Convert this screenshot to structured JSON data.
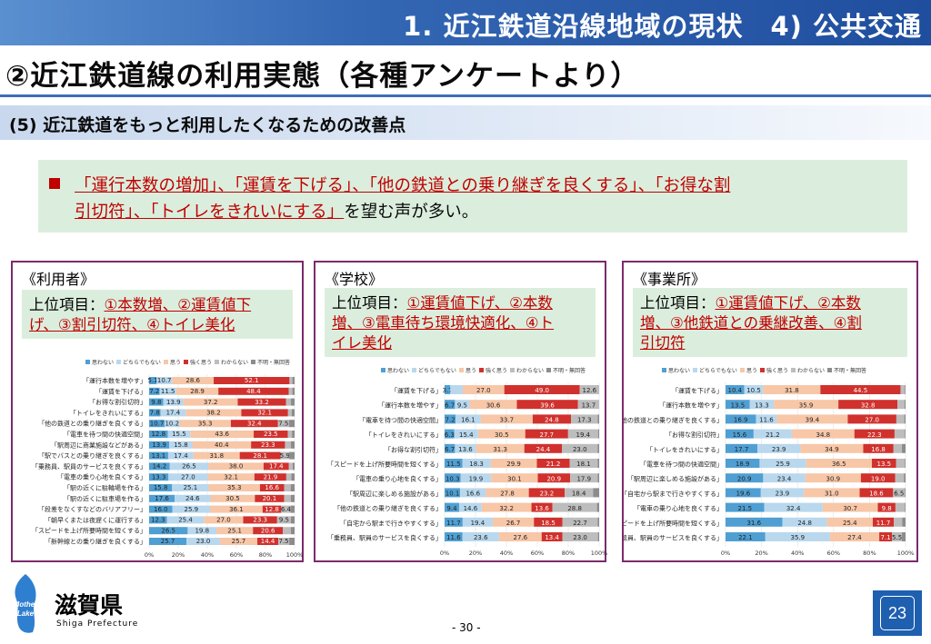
{
  "header": {
    "title": "1. 近江鉄道沿線地域の現状　4) 公共交通"
  },
  "main_title": "②近江鉄道線の利用実態（各種アンケートより）",
  "section_title": "(5) 近江鉄道をもっと利用したくなるための改善点",
  "summary": {
    "line1_hl": "「運行本数の増加」、「運賃を下げる」、「他の鉄道との乗り継ぎを良くする」、「お得な割",
    "line2_hl": "引切符」、「トイレをきれいにする」",
    "line2_rest": "を望む声が多い。"
  },
  "panels": [
    {
      "title": "《利用者》",
      "top_label": "上位項目：",
      "top_line1": "①本数増、②運賃値下",
      "top_line2": "げ、③割引切符、④トイレ美化"
    },
    {
      "title": "《学校》",
      "top_label": "上位項目：",
      "top_line1": "①運賃値下げ、②本数",
      "top_line2": "増、③電車待ち環境快適化、④ト",
      "top_line3": "イレ美化"
    },
    {
      "title": "《事業所》",
      "top_label": "上位項目：",
      "top_line1": "①運賃値下げ、②本数",
      "top_line2": "増、③他鉄道との乗継改善、④割",
      "top_line3": "引切符"
    }
  ],
  "legend_colors": [
    "#4f9fd3",
    "#b9d8ee",
    "#f7c7a8",
    "#d0312d",
    "#bdbdbd",
    "#8c8c8c"
  ],
  "chart_data": [
    {
      "type": "bar",
      "orientation": "horizontal",
      "stacked": true,
      "legend": [
        "思わない",
        "どちらでもない",
        "思う",
        "強く思う",
        "わからない",
        "不明・無回答"
      ],
      "xlim": [
        0,
        100
      ],
      "xticks": [
        "0%",
        "20%",
        "40%",
        "60%",
        "80%",
        "100%"
      ],
      "categories": [
        "「運行本数を増やす」",
        "「運賃を下げる」",
        "「お得な割引切符」",
        "「トイレをきれいにする」",
        "「他の鉄道との乗り継ぎを良くする」",
        "「電車を待つ間の快適空間」",
        "「駅周辺に商業施設などがある」",
        "「駅でバスとの乗り継ぎを良くする」",
        "「乗務員、駅員のサービスを良くする」",
        "「電車の乗り心地を良くする」",
        "「駅の近くに駐輪場を作る」",
        "「駅の近くに駐車場を作る」",
        "「段差をなくすなどのバリアフリー」",
        "「朝早くまたは夜遅くに運行する」",
        "「スピードを上げ所要時間を短くする」",
        "「新幹線との乗り継ぎを良くする」"
      ],
      "series": [
        {
          "name": "思わない",
          "values": [
            5.1,
            7.2,
            9.8,
            7.8,
            10.7,
            12.8,
            13.9,
            13.1,
            14.2,
            13.3,
            15.8,
            17.6,
            16.0,
            12.3,
            26.5,
            25.7
          ]
        },
        {
          "name": "どちらでもない",
          "values": [
            10.7,
            11.5,
            13.9,
            17.4,
            10.2,
            15.5,
            15.8,
            17.4,
            26.5,
            27.0,
            25.1,
            24.6,
            25.9,
            25.4,
            19.8,
            23.0
          ]
        },
        {
          "name": "思う",
          "values": [
            28.6,
            28.9,
            37.2,
            38.2,
            35.3,
            43.6,
            40.4,
            31.8,
            38.0,
            32.1,
            35.3,
            30.5,
            36.1,
            27.0,
            25.1,
            25.7
          ]
        },
        {
          "name": "強く思う",
          "values": [
            52.1,
            48.4,
            33.2,
            32.1,
            32.4,
            23.5,
            23.3,
            28.1,
            17.4,
            21.9,
            16.6,
            20.1,
            12.8,
            23.3,
            20.6,
            14.4
          ]
        },
        {
          "name": "わからない",
          "values": [
            2.0,
            2.5,
            3.4,
            2.5,
            7.5,
            2.8,
            4.0,
            5.9,
            2.6,
            3.5,
            4.5,
            4.6,
            6.4,
            9.5,
            5.4,
            7.5
          ]
        },
        {
          "name": "不明・無回答",
          "values": [
            1.5,
            1.5,
            2.5,
            2.0,
            3.9,
            1.8,
            2.6,
            3.7,
            1.3,
            2.2,
            2.7,
            2.6,
            2.8,
            2.5,
            2.6,
            3.7
          ]
        }
      ],
      "labels": [
        [
          "5.1",
          "10.7",
          "28.6",
          "52.1",
          "",
          ""
        ],
        [
          "7.2",
          "11.5",
          "28.9",
          "48.4",
          "",
          ""
        ],
        [
          "9.8",
          "13.9",
          "37.2",
          "33.2",
          "",
          ""
        ],
        [
          "7.8",
          "17.4",
          "38.2",
          "32.1",
          "",
          ""
        ],
        [
          "10.7",
          "10.2",
          "35.3",
          "32.4",
          "7.5",
          ""
        ],
        [
          "12.8",
          "15.5",
          "43.6",
          "23.5",
          "",
          ""
        ],
        [
          "13.9",
          "15.8",
          "40.4",
          "23.3",
          "",
          ""
        ],
        [
          "13.1",
          "17.4",
          "31.8",
          "28.1",
          "5.9",
          ""
        ],
        [
          "14.2",
          "26.5",
          "38.0",
          "17.4",
          "",
          ""
        ],
        [
          "13.3",
          "27.0",
          "32.1",
          "21.9",
          "",
          ""
        ],
        [
          "15.8",
          "25.1",
          "35.3",
          "16.6",
          "",
          ""
        ],
        [
          "17.6",
          "24.6",
          "30.5",
          "20.1",
          "",
          ""
        ],
        [
          "16.0",
          "25.9",
          "36.1",
          "12.8",
          "6.4",
          ""
        ],
        [
          "12.3",
          "25.4",
          "27.0",
          "23.3",
          "9.5",
          ""
        ],
        [
          "26.5",
          "19.8",
          "25.1",
          "20.6",
          "",
          ""
        ],
        [
          "25.7",
          "23.0",
          "25.7",
          "14.4",
          "7.5",
          ""
        ]
      ]
    },
    {
      "type": "bar",
      "orientation": "horizontal",
      "stacked": true,
      "legend": [
        "思わない",
        "どちらでもない",
        "思う",
        "強く思う",
        "わからない",
        "不明・無回答"
      ],
      "xlim": [
        0,
        100
      ],
      "xticks": [
        "0%",
        "20%",
        "40%",
        "60%",
        "80%",
        "100%"
      ],
      "categories": [
        "「運賃を下げる」",
        "「運行本数を増やす」",
        "「電車を待つ間の快適空間」",
        "「トイレをきれいにする」",
        "「お得な割引切符」",
        "「スピードを上げ所要時間を短くする」",
        "「電車の乗り心地を良くする」",
        "「駅周辺に楽しめる施設がある」",
        "「他の鉄道との乗り継ぎを良くする」",
        "「自宅から駅まで行きやすくする」",
        "「乗務員、駅員のサービスを良くする」"
      ],
      "series": [
        {
          "name": "思わない",
          "values": [
            3.7,
            6.7,
            7.2,
            6.3,
            6.7,
            11.5,
            10.3,
            10.1,
            9.4,
            11.7,
            11.6
          ]
        },
        {
          "name": "どちらでもない",
          "values": [
            8.1,
            9.5,
            16.1,
            15.4,
            13.6,
            18.3,
            19.9,
            16.6,
            14.6,
            19.4,
            23.6
          ]
        },
        {
          "name": "思う",
          "values": [
            27.0,
            30.6,
            33.7,
            30.5,
            31.3,
            29.9,
            30.1,
            27.8,
            32.2,
            26.7,
            27.6
          ]
        },
        {
          "name": "強く思う",
          "values": [
            49.0,
            39.6,
            24.8,
            27.7,
            24.4,
            21.2,
            20.9,
            23.2,
            13.6,
            18.5,
            13.4
          ]
        },
        {
          "name": "わからない",
          "values": [
            12.6,
            13.7,
            17.3,
            19.4,
            23.0,
            18.1,
            17.9,
            18.4,
            28.8,
            22.7,
            23.0
          ]
        },
        {
          "name": "不明・無回答",
          "values": [
            0.0,
            0.0,
            0.9,
            0.7,
            1.0,
            1.0,
            0.9,
            3.9,
            1.4,
            1.0,
            0.8
          ]
        }
      ],
      "labels": [
        [
          "3.7",
          "",
          "27.0",
          "49.0",
          "12.6",
          ""
        ],
        [
          "6.7",
          "9.5",
          "30.6",
          "39.6",
          "13.7",
          ""
        ],
        [
          "7.2",
          "16.1",
          "33.7",
          "24.8",
          "17.3",
          ""
        ],
        [
          "6.3",
          "15.4",
          "30.5",
          "27.7",
          "19.4",
          ""
        ],
        [
          "6.7",
          "13.6",
          "31.3",
          "24.4",
          "23.0",
          ""
        ],
        [
          "11.5",
          "18.3",
          "29.9",
          "21.2",
          "18.1",
          ""
        ],
        [
          "10.3",
          "19.9",
          "30.1",
          "20.9",
          "17.9",
          ""
        ],
        [
          "10.1",
          "16.6",
          "27.8",
          "23.2",
          "18.4",
          ""
        ],
        [
          "9.4",
          "14.6",
          "32.2",
          "13.6",
          "28.8",
          ""
        ],
        [
          "11.7",
          "19.4",
          "26.7",
          "18.5",
          "22.7",
          ""
        ],
        [
          "11.6",
          "23.6",
          "27.6",
          "13.4",
          "23.0",
          ""
        ]
      ]
    },
    {
      "type": "bar",
      "orientation": "horizontal",
      "stacked": true,
      "legend": [
        "思わない",
        "どちらでもない",
        "思う",
        "強く思う",
        "わからない",
        "不明・無回答"
      ],
      "xlim": [
        0,
        100
      ],
      "xticks": [
        "0%",
        "20%",
        "40%",
        "60%",
        "80%",
        "100%"
      ],
      "categories": [
        "「運賃を下げる」",
        "「運行本数を増やす」",
        "「他の鉄道との乗り継ぎを良くする」",
        "「お得な割引切符」",
        "「トイレをきれいにする」",
        "「電車を待つ間の快適空間」",
        "「駅周辺に楽しめる施設がある」",
        "「自宅から駅まで行きやすくする」",
        "「電車の乗り心地を良くする」",
        "「スピードを上げ所要時間を短くする」",
        "「乗務員、駅員のサービスを良くする」"
      ],
      "series": [
        {
          "name": "思わない",
          "values": [
            10.4,
            13.5,
            16.9,
            15.6,
            17.7,
            18.9,
            20.9,
            19.6,
            21.5,
            31.6,
            22.1
          ]
        },
        {
          "name": "どちらでもない",
          "values": [
            10.5,
            13.3,
            11.6,
            21.2,
            23.9,
            25.9,
            23.4,
            23.9,
            32.4,
            24.8,
            35.9
          ]
        },
        {
          "name": "思う",
          "values": [
            31.8,
            35.9,
            39.4,
            34.8,
            34.9,
            36.5,
            30.9,
            31.0,
            30.7,
            25.4,
            27.4
          ]
        },
        {
          "name": "強く思う",
          "values": [
            44.5,
            32.8,
            27.0,
            22.3,
            16.8,
            13.5,
            19.0,
            18.6,
            9.8,
            11.7,
            7.1
          ]
        },
        {
          "name": "わからない",
          "values": [
            2.4,
            4.0,
            4.4,
            5.7,
            4.7,
            4.8,
            4.9,
            6.5,
            5.2,
            4.6,
            5.5
          ]
        },
        {
          "name": "不明・無回答",
          "values": [
            0.4,
            0.5,
            0.7,
            0.4,
            2.0,
            0.4,
            0.9,
            0.4,
            0.4,
            1.9,
            2.0
          ]
        }
      ],
      "labels": [
        [
          "10.4",
          "10.5",
          "31.8",
          "44.5",
          "",
          ""
        ],
        [
          "13.5",
          "13.3",
          "35.9",
          "32.8",
          "",
          ""
        ],
        [
          "16.9",
          "11.6",
          "39.4",
          "27.0",
          "",
          ""
        ],
        [
          "15.6",
          "21.2",
          "34.8",
          "22.3",
          "",
          ""
        ],
        [
          "17.7",
          "23.9",
          "34.9",
          "16.8",
          "",
          ""
        ],
        [
          "18.9",
          "25.9",
          "36.5",
          "13.5",
          "",
          ""
        ],
        [
          "20.9",
          "23.4",
          "30.9",
          "19.0",
          "",
          ""
        ],
        [
          "19.6",
          "23.9",
          "31.0",
          "18.6",
          "6.5",
          ""
        ],
        [
          "21.5",
          "32.4",
          "30.7",
          "9.8",
          "",
          ""
        ],
        [
          "31.6",
          "24.8",
          "25.4",
          "11.7",
          "",
          ""
        ],
        [
          "22.1",
          "35.9",
          "27.4",
          "7.1",
          "5.5",
          ""
        ]
      ]
    }
  ],
  "footer": {
    "page_number": "- 30 -",
    "logo_mother": "Mother",
    "logo_lake": "Lake",
    "logo_name": "滋賀県",
    "logo_sub": "Shiga Prefecture",
    "slide_number": "23"
  }
}
